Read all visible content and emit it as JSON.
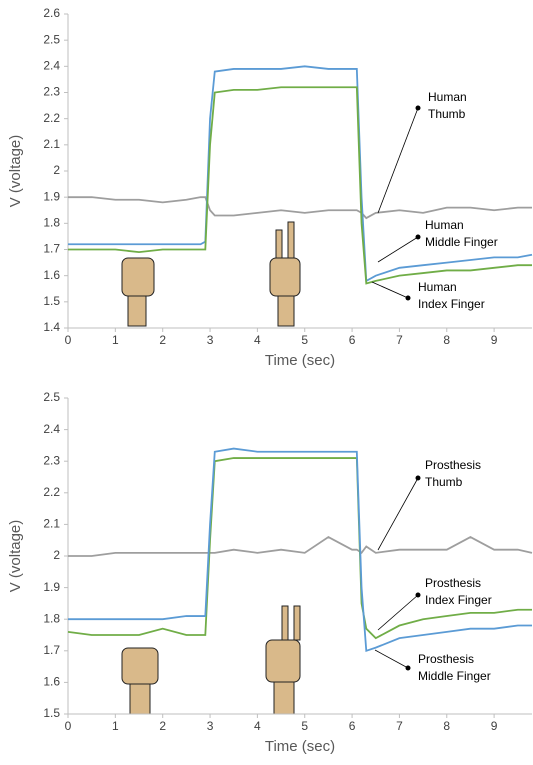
{
  "chart_data": [
    {
      "type": "line",
      "xlabel": "Time (sec)",
      "ylabel": "V (voltage)",
      "x": [
        0,
        0.5,
        1,
        1.5,
        2,
        2.5,
        2.8,
        2.9,
        3.0,
        3.1,
        3.5,
        4,
        4.5,
        5,
        5.5,
        6,
        6.1,
        6.2,
        6.3,
        6.5,
        7,
        7.5,
        8,
        8.5,
        9,
        9.5,
        9.8
      ],
      "xlim": [
        0,
        9.8
      ],
      "xticks": [
        0,
        1,
        2,
        3,
        4,
        5,
        6,
        7,
        8,
        9
      ],
      "ylim": [
        1.4,
        2.6
      ],
      "yticks": [
        1.4,
        1.5,
        1.6,
        1.7,
        1.8,
        1.9,
        2,
        2.1,
        2.2,
        2.3,
        2.4,
        2.5,
        2.6
      ],
      "series": [
        {
          "color": "#9e9e9e",
          "values": [
            1.9,
            1.9,
            1.89,
            1.89,
            1.88,
            1.89,
            1.9,
            1.9,
            1.85,
            1.83,
            1.83,
            1.84,
            1.85,
            1.84,
            1.85,
            1.85,
            1.85,
            1.84,
            1.82,
            1.84,
            1.85,
            1.84,
            1.86,
            1.86,
            1.85,
            1.86,
            1.86
          ]
        },
        {
          "color": "#5b9bd5",
          "values": [
            1.72,
            1.72,
            1.72,
            1.72,
            1.72,
            1.72,
            1.72,
            1.73,
            2.2,
            2.38,
            2.39,
            2.39,
            2.39,
            2.4,
            2.39,
            2.39,
            2.39,
            1.9,
            1.58,
            1.6,
            1.63,
            1.64,
            1.65,
            1.66,
            1.67,
            1.67,
            1.68
          ]
        },
        {
          "color": "#70ad47",
          "values": [
            1.7,
            1.7,
            1.7,
            1.69,
            1.7,
            1.7,
            1.7,
            1.7,
            2.1,
            2.3,
            2.31,
            2.31,
            2.32,
            2.32,
            2.32,
            2.32,
            2.32,
            1.8,
            1.57,
            1.58,
            1.6,
            1.61,
            1.62,
            1.62,
            1.63,
            1.64,
            1.64
          ]
        }
      ],
      "annotations": [
        {
          "lines": [
            "Human",
            "Thumb"
          ]
        },
        {
          "lines": [
            "Human",
            "Middle Finger"
          ]
        },
        {
          "lines": [
            "Human",
            "Index Finger"
          ]
        }
      ]
    },
    {
      "type": "line",
      "xlabel": "Time (sec)",
      "ylabel": "V (voltage)",
      "x": [
        0,
        0.5,
        1,
        1.5,
        2,
        2.5,
        2.8,
        2.9,
        3.0,
        3.1,
        3.5,
        4,
        4.5,
        5,
        5.5,
        6,
        6.1,
        6.2,
        6.3,
        6.5,
        7,
        7.5,
        8,
        8.5,
        9,
        9.5,
        9.8
      ],
      "xlim": [
        0,
        9.8
      ],
      "xticks": [
        0,
        1,
        2,
        3,
        4,
        5,
        6,
        7,
        8,
        9
      ],
      "ylim": [
        1.5,
        2.5
      ],
      "yticks": [
        1.5,
        1.6,
        1.7,
        1.8,
        1.9,
        2,
        2.1,
        2.2,
        2.3,
        2.4,
        2.5
      ],
      "series": [
        {
          "color": "#9e9e9e",
          "values": [
            2.0,
            2.0,
            2.01,
            2.01,
            2.01,
            2.01,
            2.01,
            2.01,
            2.01,
            2.01,
            2.02,
            2.01,
            2.02,
            2.01,
            2.06,
            2.02,
            2.02,
            2.01,
            2.03,
            2.01,
            2.02,
            2.02,
            2.02,
            2.06,
            2.02,
            2.02,
            2.01
          ]
        },
        {
          "color": "#70ad47",
          "values": [
            1.76,
            1.75,
            1.75,
            1.75,
            1.77,
            1.75,
            1.75,
            1.75,
            2.05,
            2.3,
            2.31,
            2.31,
            2.31,
            2.31,
            2.31,
            2.31,
            2.31,
            1.85,
            1.77,
            1.74,
            1.78,
            1.8,
            1.81,
            1.82,
            1.82,
            1.83,
            1.83
          ]
        },
        {
          "color": "#5b9bd5",
          "values": [
            1.8,
            1.8,
            1.8,
            1.8,
            1.8,
            1.81,
            1.81,
            1.81,
            2.1,
            2.33,
            2.34,
            2.33,
            2.33,
            2.33,
            2.33,
            2.33,
            2.33,
            1.9,
            1.7,
            1.71,
            1.74,
            1.75,
            1.76,
            1.77,
            1.77,
            1.78,
            1.78
          ]
        }
      ],
      "annotations": [
        {
          "lines": [
            "Prosthesis",
            "Thumb"
          ]
        },
        {
          "lines": [
            "Prosthesis",
            "Index Finger"
          ]
        },
        {
          "lines": [
            "Prosthesis",
            "Middle Finger"
          ]
        }
      ]
    }
  ]
}
